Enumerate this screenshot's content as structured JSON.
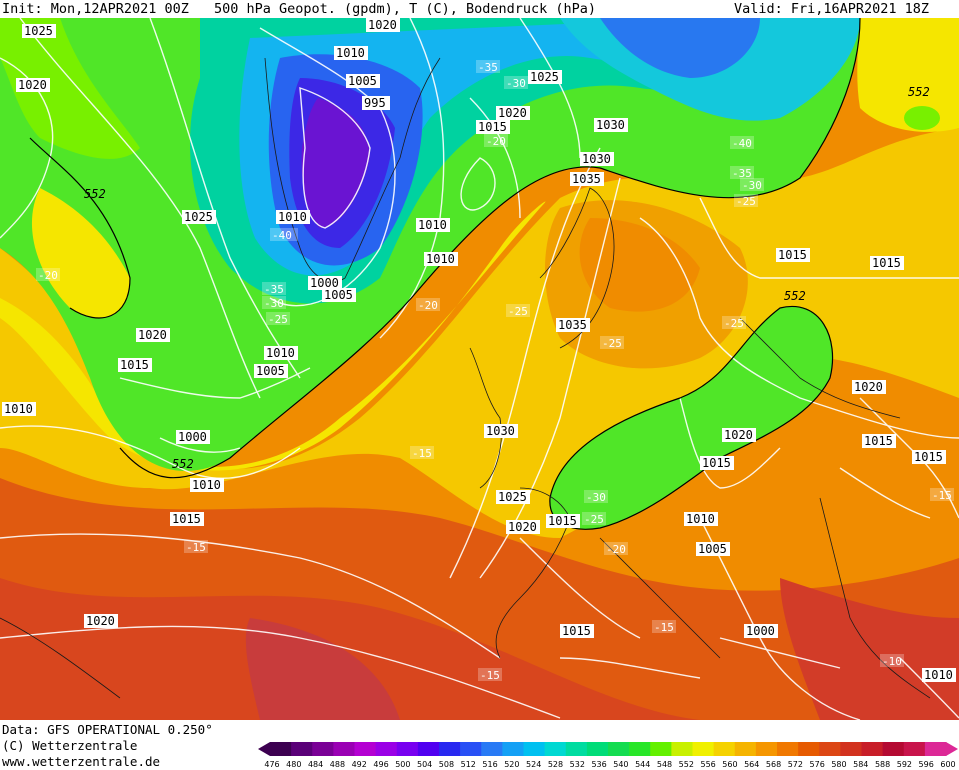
{
  "header": {
    "init": "Init: Mon,12APR2021 00Z",
    "field": "500 hPa Geopot. (gpdm), T (C), Bodendruck (hPa)",
    "valid": "Valid: Fri,16APR2021 18Z"
  },
  "footer": {
    "data_line": "Data: GFS OPERATIONAL 0.250°",
    "copyright": "(C) Wetterzentrale",
    "url": "www.wetterzentrale.de"
  },
  "colorbar": {
    "values": [
      "476",
      "480",
      "484",
      "488",
      "492",
      "496",
      "500",
      "504",
      "508",
      "512",
      "516",
      "520",
      "524",
      "528",
      "532",
      "536",
      "540",
      "544",
      "548",
      "552",
      "556",
      "560",
      "564",
      "568",
      "572",
      "576",
      "580",
      "584",
      "588",
      "592",
      "596",
      "600"
    ],
    "colors": [
      "#3c0050",
      "#5a0078",
      "#7a0096",
      "#9a00b4",
      "#b400d2",
      "#9a00e6",
      "#7800f0",
      "#5000f0",
      "#2828f0",
      "#2850f5",
      "#287af5",
      "#14a0f5",
      "#00c0f0",
      "#00d8d2",
      "#00dca0",
      "#00dc78",
      "#14dc50",
      "#28e628",
      "#64f000",
      "#c8f000",
      "#f0f000",
      "#f5d200",
      "#f5b400",
      "#f59600",
      "#f07800",
      "#e65a00",
      "#dc4614",
      "#d2321e",
      "#c81e28",
      "#b40a32",
      "#c8144b",
      "#dc2896"
    ]
  },
  "isobar_labels": [
    {
      "text": "1025"
    },
    {
      "text": "1020"
    },
    {
      "text": "1015"
    },
    {
      "text": "1010"
    },
    {
      "text": "1005"
    },
    {
      "text": "1000"
    },
    {
      "text": "995"
    },
    {
      "text": "1030"
    },
    {
      "text": "1035"
    },
    {
      "text": "1015"
    },
    {
      "text": "1010"
    },
    {
      "text": "1005"
    },
    {
      "text": "1000"
    }
  ],
  "height_labels": [
    "552"
  ],
  "temperature_labels": [
    "-40",
    "-35",
    "-30",
    "-25",
    "-20",
    "-15",
    "-10"
  ]
}
